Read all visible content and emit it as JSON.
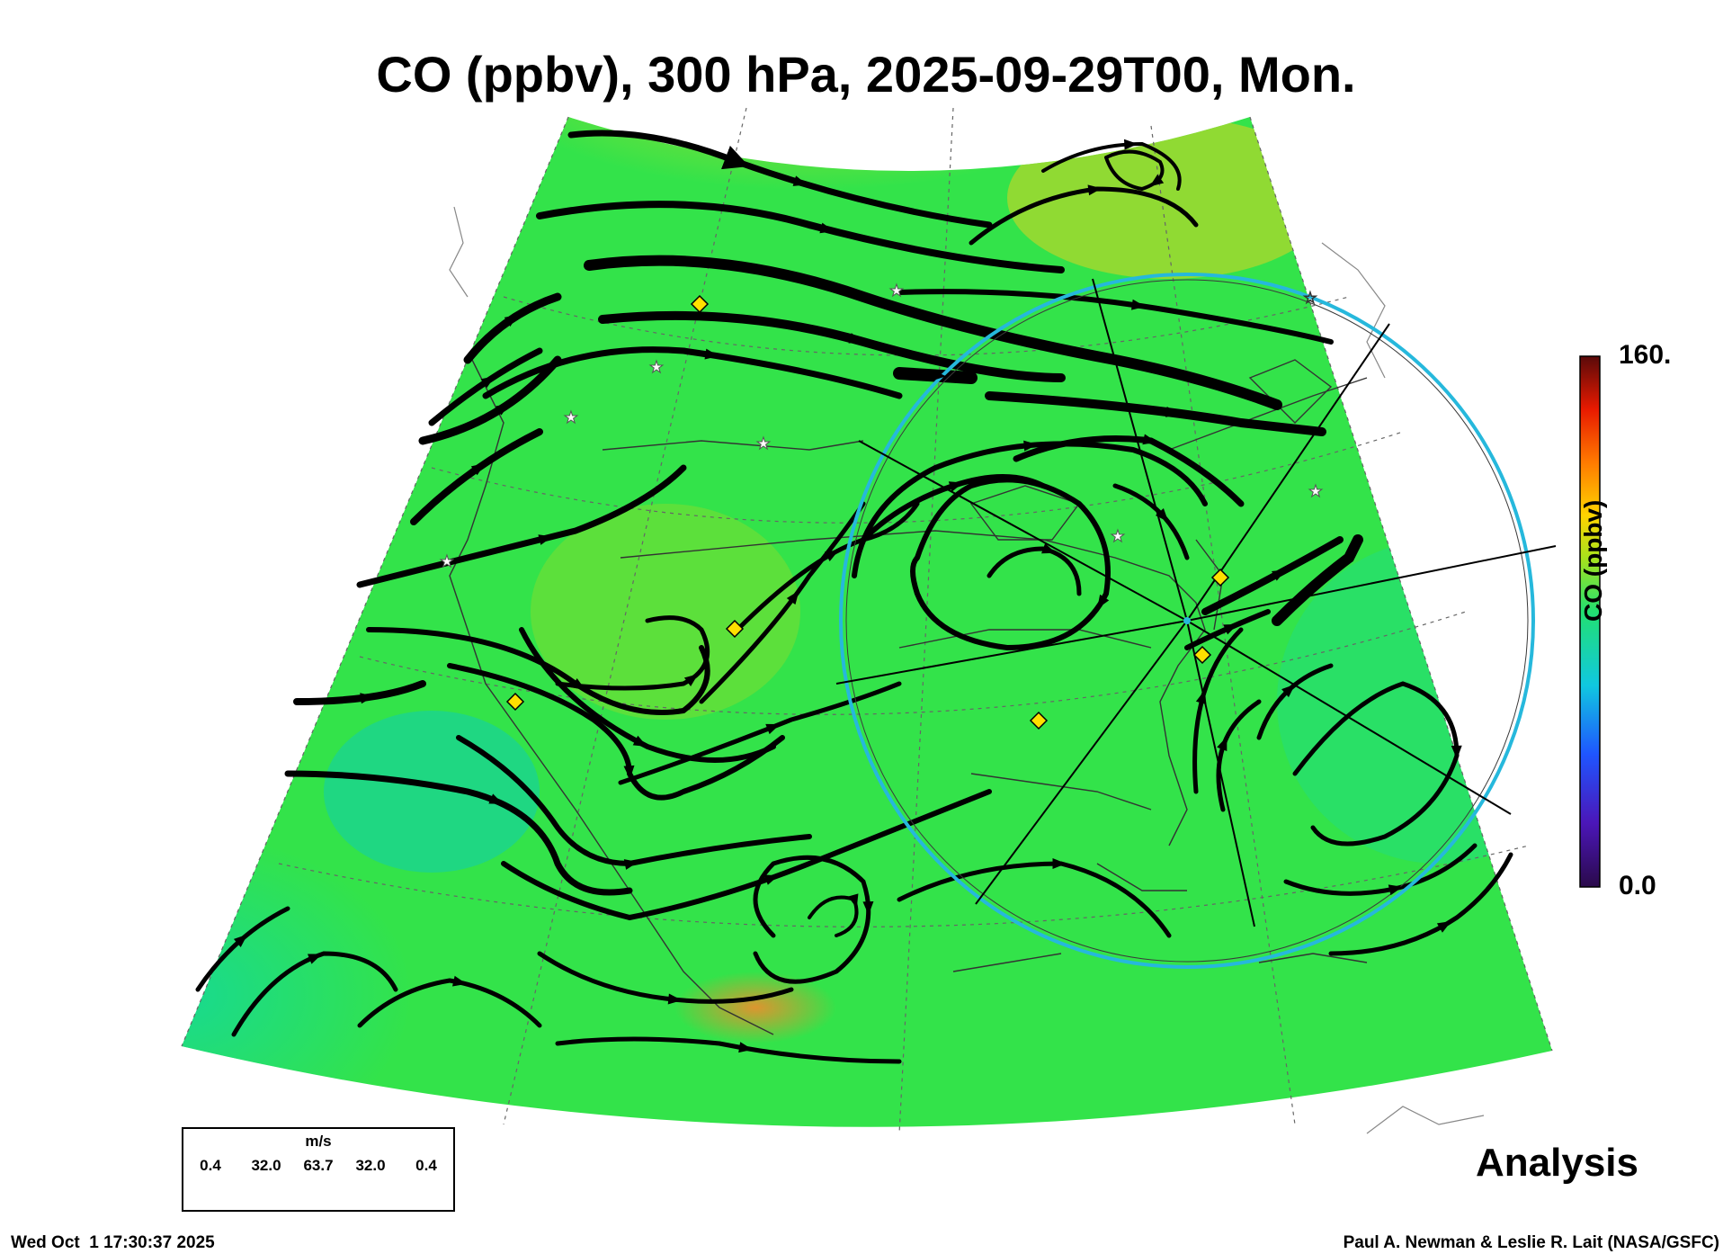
{
  "title": "CO (ppbv), 300 hPa, 2025-09-29T00, Mon.",
  "colorbar": {
    "label": "CO (ppbv)",
    "max_label": "160.",
    "min_label": "0.0",
    "range": [
      0,
      160
    ]
  },
  "wind_legend": {
    "unit": "m/s",
    "values": [
      "0.4",
      "32.0",
      "63.7",
      "32.0",
      "0.4"
    ]
  },
  "mode_label": "Analysis",
  "timestamp": "Wed Oct  1 17:30:37 2025",
  "credit": "Paul A. Newman & Leslie R. Lait (NASA/GSFC)",
  "colors": {
    "field_base": "#33e34a",
    "field_low": "#14d89a",
    "field_high": "#c9d821",
    "hotspot": "#f08c2c",
    "range_ring": "#26b8dc",
    "streamline": "#000000",
    "marker_diamond": "#ffe000",
    "marker_star": "#ffffff"
  },
  "icons": [
    "yellow-diamond-marker",
    "white-star-marker",
    "streamline-arrow"
  ]
}
